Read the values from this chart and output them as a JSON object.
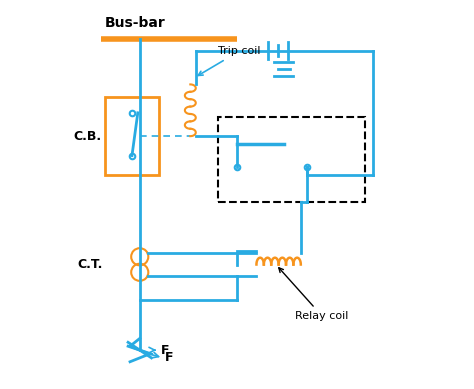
{
  "background_color": "#ffffff",
  "blue_color": "#29ABE2",
  "orange_color": "#F7941D",
  "dark_blue": "#1E90FF",
  "line_width": 2.0,
  "dashed_color": "#333333",
  "text_color": "#000000",
  "title": "Bus-bar",
  "labels": {
    "busbar": "Bus-bar",
    "cb": "C.B.",
    "ct": "C.T.",
    "f": "F",
    "trip_coil": "Trip coil",
    "relay_coil": "Relay coil"
  }
}
